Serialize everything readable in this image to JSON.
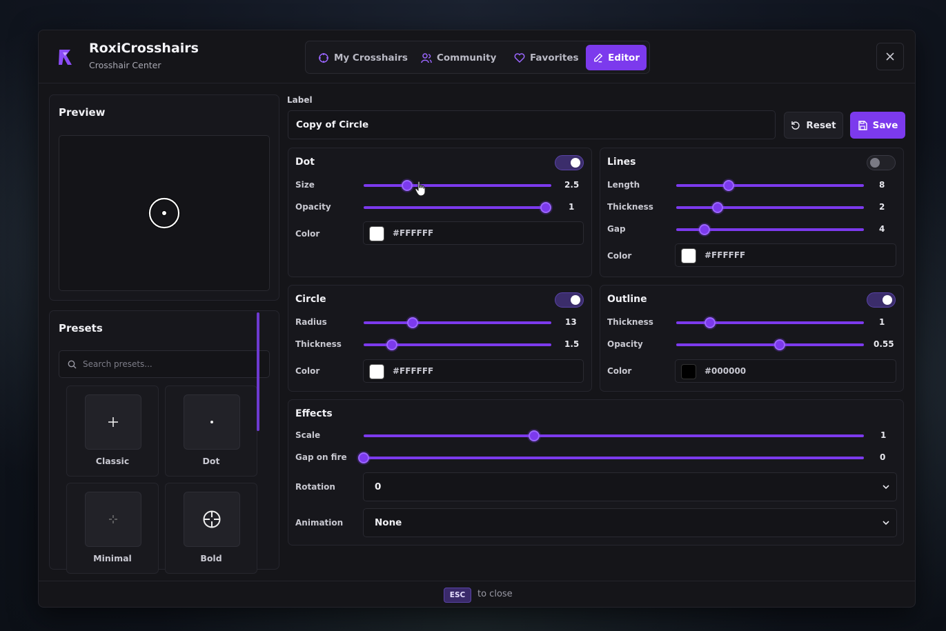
{
  "app": {
    "title": "RoxiCrosshairs",
    "subtitle": "Crosshair Center",
    "accent": "#7c3aed"
  },
  "tabs": [
    {
      "label": "My Crosshairs",
      "icon": "crosshair-icon",
      "active": false
    },
    {
      "label": "Community",
      "icon": "users-icon",
      "active": false
    },
    {
      "label": "Favorites",
      "icon": "heart-icon",
      "active": false
    },
    {
      "label": "Editor",
      "icon": "pencil-icon",
      "active": true
    }
  ],
  "preview": {
    "title": "Preview"
  },
  "presets": {
    "title": "Presets",
    "search_placeholder": "Search presets...",
    "items": [
      {
        "label": "Classic"
      },
      {
        "label": "Dot"
      },
      {
        "label": "Minimal"
      },
      {
        "label": "Bold"
      }
    ]
  },
  "editor": {
    "label_caption": "Label",
    "label_value": "Copy of Circle",
    "reset_label": "Reset",
    "save_label": "Save",
    "dot": {
      "title": "Dot",
      "enabled": true,
      "size": {
        "label": "Size",
        "value": "2.5",
        "fraction": 0.23
      },
      "opacity": {
        "label": "Opacity",
        "value": "1",
        "fraction": 0.97
      },
      "color": {
        "label": "Color",
        "hex": "#FFFFFF"
      }
    },
    "lines": {
      "title": "Lines",
      "enabled": false,
      "length": {
        "label": "Length",
        "value": "8",
        "fraction": 0.28
      },
      "thickness": {
        "label": "Thickness",
        "value": "2",
        "fraction": 0.22
      },
      "gap": {
        "label": "Gap",
        "value": "4",
        "fraction": 0.15
      },
      "color": {
        "label": "Color",
        "hex": "#FFFFFF"
      }
    },
    "circle": {
      "title": "Circle",
      "enabled": true,
      "radius": {
        "label": "Radius",
        "value": "13",
        "fraction": 0.26
      },
      "thickness": {
        "label": "Thickness",
        "value": "1.5",
        "fraction": 0.15
      },
      "color": {
        "label": "Color",
        "hex": "#FFFFFF"
      }
    },
    "outline": {
      "title": "Outline",
      "enabled": true,
      "thickness": {
        "label": "Thickness",
        "value": "1",
        "fraction": 0.18
      },
      "opacity": {
        "label": "Opacity",
        "value": "0.55",
        "fraction": 0.55
      },
      "color": {
        "label": "Color",
        "hex": "#000000"
      }
    },
    "effects": {
      "title": "Effects",
      "scale": {
        "label": "Scale",
        "value": "1",
        "fraction": 0.34
      },
      "gap_on_fire": {
        "label": "Gap on fire",
        "value": "0",
        "fraction": 0.0
      },
      "rotation": {
        "label": "Rotation",
        "value": "0"
      },
      "animation": {
        "label": "Animation",
        "value": "None"
      }
    }
  },
  "footer": {
    "key": "ESC",
    "text": "to close"
  }
}
